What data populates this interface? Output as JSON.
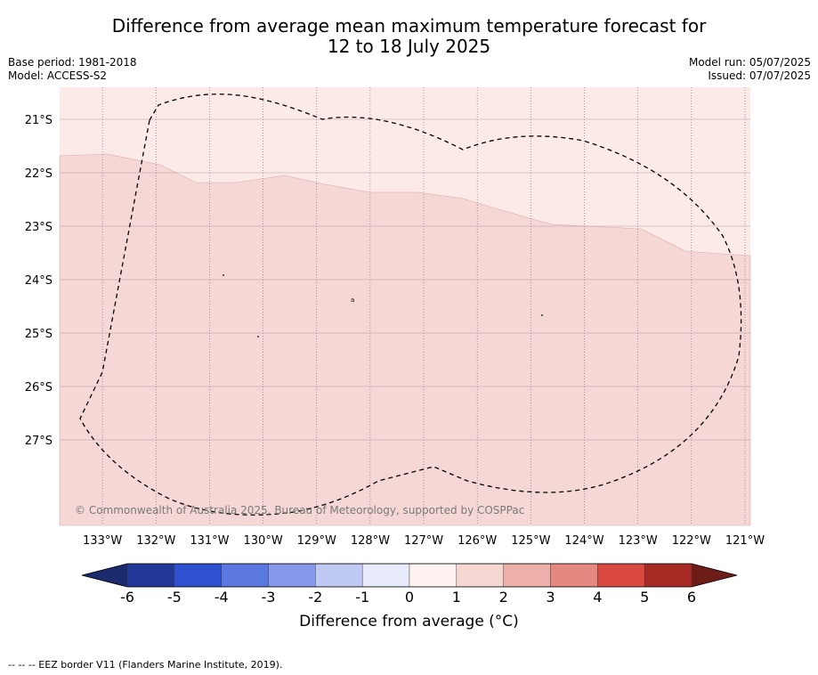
{
  "title": {
    "line1": "Difference from average mean maximum temperature forecast for",
    "line2": "12 to 18 July 2025"
  },
  "header_left": {
    "base_period": "Base period: 1981-2018",
    "model": "Model: ACCESS-S2"
  },
  "header_right": {
    "model_run": "Model run: 05/07/2025",
    "issued": "Issued: 07/07/2025"
  },
  "map": {
    "lon_range": [
      -133.8,
      -120.9
    ],
    "lat_range": [
      -28.6,
      -20.4
    ],
    "lon_ticks": [
      "133°W",
      "132°W",
      "131°W",
      "130°W",
      "129°W",
      "128°W",
      "127°W",
      "126°W",
      "125°W",
      "124°W",
      "123°W",
      "122°W",
      "121°W"
    ],
    "lat_ticks": [
      "21°S",
      "22°S",
      "23°S",
      "24°S",
      "25°S",
      "26°S",
      "27°S"
    ],
    "lon_tick_values": [
      -133,
      -132,
      -131,
      -130,
      -129,
      -128,
      -127,
      -126,
      -125,
      -124,
      -123,
      -122,
      -121
    ],
    "lat_tick_values": [
      -21,
      -22,
      -23,
      -24,
      -25,
      -26,
      -27
    ],
    "fill_colors": {
      "band_0_1": "#fbeae8",
      "band_1_2": "#f5d7d5"
    },
    "copyright": "© Commonwealth of Australia 2025, Bureau of Meteorology, supported by COSPPac"
  },
  "colorbar": {
    "labels": [
      "-6",
      "-5",
      "-4",
      "-3",
      "-2",
      "-1",
      "0",
      "1",
      "2",
      "3",
      "4",
      "5",
      "6"
    ],
    "colors": [
      "#23399a",
      "#2e51d0",
      "#5b77e0",
      "#8797ec",
      "#c0c8f4",
      "#e8ebfb",
      "#fdf2ef",
      "#f4d6d3",
      "#edafaa",
      "#e58880",
      "#d9493f",
      "#a72a25"
    ],
    "under_color": "#1b2a6c",
    "over_color": "#6e1c17",
    "label": "Difference from average (°C)"
  },
  "footnote": "--  --  -- EEZ border V11 (Flanders Marine Institute, 2019)."
}
